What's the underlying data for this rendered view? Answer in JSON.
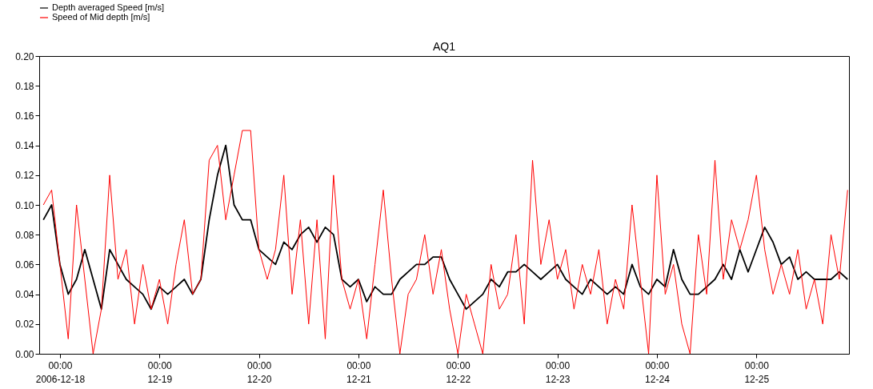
{
  "chart_data": {
    "type": "line",
    "title": "AQ1",
    "legend": "top left",
    "grid": false,
    "xlim": [
      "2006-12-17T19:00",
      "2006-12-25T22:20"
    ],
    "ylim": [
      0,
      0.2
    ],
    "yticks": [
      {
        "value": 0,
        "label": "0.00"
      },
      {
        "value": 0.02,
        "label": "0.02"
      },
      {
        "value": 0.04,
        "label": "0.04"
      },
      {
        "value": 0.06,
        "label": "0.06"
      },
      {
        "value": 0.08,
        "label": "0.08"
      },
      {
        "value": 0.1,
        "label": "0.10"
      },
      {
        "value": 0.12,
        "label": "0.12"
      },
      {
        "value": 0.14,
        "label": "0.14"
      },
      {
        "value": 0.16,
        "label": "0.16"
      },
      {
        "value": 0.18,
        "label": "0.18"
      },
      {
        "value": 0.2,
        "label": "0.20"
      }
    ],
    "xticks": [
      {
        "value": "2006-12-18T00:00",
        "label": "00:00\n2006-12-18"
      },
      {
        "value": "2006-12-19T00:00",
        "label": "00:00\n12-19"
      },
      {
        "value": "2006-12-20T00:00",
        "label": "00:00\n12-20"
      },
      {
        "value": "2006-12-21T00:00",
        "label": "00:00\n12-21"
      },
      {
        "value": "2006-12-22T00:00",
        "label": "00:00\n12-22"
      },
      {
        "value": "2006-12-23T00:00",
        "label": "00:00\n12-23"
      },
      {
        "value": "2006-12-24T00:00",
        "label": "00:00\n12-24"
      },
      {
        "value": "2006-12-25T00:00",
        "label": "00:00\n12-25"
      }
    ],
    "x": [
      "2006-12-17T20:00",
      "2006-12-17T22:00",
      "2006-12-18T00:00",
      "2006-12-18T02:00",
      "2006-12-18T04:00",
      "2006-12-18T06:00",
      "2006-12-18T08:00",
      "2006-12-18T10:00",
      "2006-12-18T12:00",
      "2006-12-18T14:00",
      "2006-12-18T16:00",
      "2006-12-18T18:00",
      "2006-12-18T20:00",
      "2006-12-18T22:00",
      "2006-12-19T00:00",
      "2006-12-19T02:00",
      "2006-12-19T04:00",
      "2006-12-19T06:00",
      "2006-12-19T08:00",
      "2006-12-19T10:00",
      "2006-12-19T12:00",
      "2006-12-19T14:00",
      "2006-12-19T16:00",
      "2006-12-19T18:00",
      "2006-12-19T20:00",
      "2006-12-19T22:00",
      "2006-12-20T00:00",
      "2006-12-20T02:00",
      "2006-12-20T04:00",
      "2006-12-20T06:00",
      "2006-12-20T08:00",
      "2006-12-20T10:00",
      "2006-12-20T12:00",
      "2006-12-20T14:00",
      "2006-12-20T16:00",
      "2006-12-20T18:00",
      "2006-12-20T20:00",
      "2006-12-20T22:00",
      "2006-12-21T00:00",
      "2006-12-21T02:00",
      "2006-12-21T04:00",
      "2006-12-21T06:00",
      "2006-12-21T08:00",
      "2006-12-21T10:00",
      "2006-12-21T12:00",
      "2006-12-21T14:00",
      "2006-12-21T16:00",
      "2006-12-21T18:00",
      "2006-12-21T20:00",
      "2006-12-21T22:00",
      "2006-12-22T00:00",
      "2006-12-22T02:00",
      "2006-12-22T04:00",
      "2006-12-22T06:00",
      "2006-12-22T08:00",
      "2006-12-22T10:00",
      "2006-12-22T12:00",
      "2006-12-22T14:00",
      "2006-12-22T16:00",
      "2006-12-22T18:00",
      "2006-12-22T20:00",
      "2006-12-22T22:00",
      "2006-12-23T00:00",
      "2006-12-23T02:00",
      "2006-12-23T04:00",
      "2006-12-23T06:00",
      "2006-12-23T08:00",
      "2006-12-23T10:00",
      "2006-12-23T12:00",
      "2006-12-23T14:00",
      "2006-12-23T16:00",
      "2006-12-23T18:00",
      "2006-12-23T20:00",
      "2006-12-23T22:00",
      "2006-12-24T00:00",
      "2006-12-24T02:00",
      "2006-12-24T04:00",
      "2006-12-24T06:00",
      "2006-12-24T08:00",
      "2006-12-24T10:00",
      "2006-12-24T12:00",
      "2006-12-24T14:00",
      "2006-12-24T16:00",
      "2006-12-24T18:00",
      "2006-12-24T20:00",
      "2006-12-24T22:00",
      "2006-12-25T00:00",
      "2006-12-25T02:00",
      "2006-12-25T04:00",
      "2006-12-25T06:00",
      "2006-12-25T08:00",
      "2006-12-25T10:00",
      "2006-12-25T12:00",
      "2006-12-25T14:00",
      "2006-12-25T16:00",
      "2006-12-25T18:00",
      "2006-12-25T20:00",
      "2006-12-25T22:00"
    ],
    "series": [
      {
        "name": "Depth averaged Speed [m/s]",
        "color": "#000000",
        "values": [
          0.09,
          0.1,
          0.06,
          0.04,
          0.05,
          0.07,
          0.05,
          0.03,
          0.07,
          0.06,
          0.05,
          0.045,
          0.04,
          0.03,
          0.045,
          0.04,
          0.045,
          0.05,
          0.04,
          0.05,
          0.09,
          0.12,
          0.14,
          0.1,
          0.09,
          0.09,
          0.07,
          0.065,
          0.06,
          0.075,
          0.07,
          0.08,
          0.085,
          0.075,
          0.085,
          0.08,
          0.05,
          0.045,
          0.05,
          0.035,
          0.045,
          0.04,
          0.04,
          0.05,
          0.055,
          0.06,
          0.06,
          0.065,
          0.065,
          0.05,
          0.04,
          0.03,
          0.035,
          0.04,
          0.05,
          0.045,
          0.055,
          0.055,
          0.06,
          0.055,
          0.05,
          0.055,
          0.06,
          0.05,
          0.045,
          0.04,
          0.05,
          0.045,
          0.04,
          0.045,
          0.04,
          0.06,
          0.045,
          0.04,
          0.05,
          0.045,
          0.07,
          0.05,
          0.04,
          0.04,
          0.045,
          0.05,
          0.06,
          0.05,
          0.07,
          0.055,
          0.07,
          0.085,
          0.075,
          0.06,
          0.065,
          0.05,
          0.055,
          0.05,
          0.05,
          0.05,
          0.055,
          0.05
        ]
      },
      {
        "name": "Speed of Mid depth      [m/s]",
        "color": "#ff0000",
        "values": [
          0.1,
          0.11,
          0.06,
          0.01,
          0.1,
          0.05,
          0.0,
          0.03,
          0.12,
          0.05,
          0.07,
          0.02,
          0.06,
          0.03,
          0.05,
          0.02,
          0.06,
          0.09,
          0.04,
          0.05,
          0.13,
          0.14,
          0.09,
          0.12,
          0.15,
          0.15,
          0.07,
          0.05,
          0.07,
          0.12,
          0.04,
          0.09,
          0.02,
          0.09,
          0.01,
          0.12,
          0.05,
          0.03,
          0.05,
          0.01,
          0.06,
          0.11,
          0.05,
          0.0,
          0.04,
          0.05,
          0.08,
          0.04,
          0.07,
          0.03,
          0.0,
          0.04,
          0.02,
          0.0,
          0.06,
          0.03,
          0.04,
          0.08,
          0.02,
          0.13,
          0.06,
          0.09,
          0.05,
          0.07,
          0.03,
          0.06,
          0.04,
          0.07,
          0.02,
          0.05,
          0.03,
          0.1,
          0.05,
          0.0,
          0.12,
          0.04,
          0.06,
          0.02,
          0.0,
          0.08,
          0.04,
          0.13,
          0.05,
          0.09,
          0.07,
          0.09,
          0.12,
          0.07,
          0.04,
          0.06,
          0.04,
          0.07,
          0.03,
          0.05,
          0.02,
          0.08,
          0.05,
          0.11
        ]
      }
    ]
  }
}
